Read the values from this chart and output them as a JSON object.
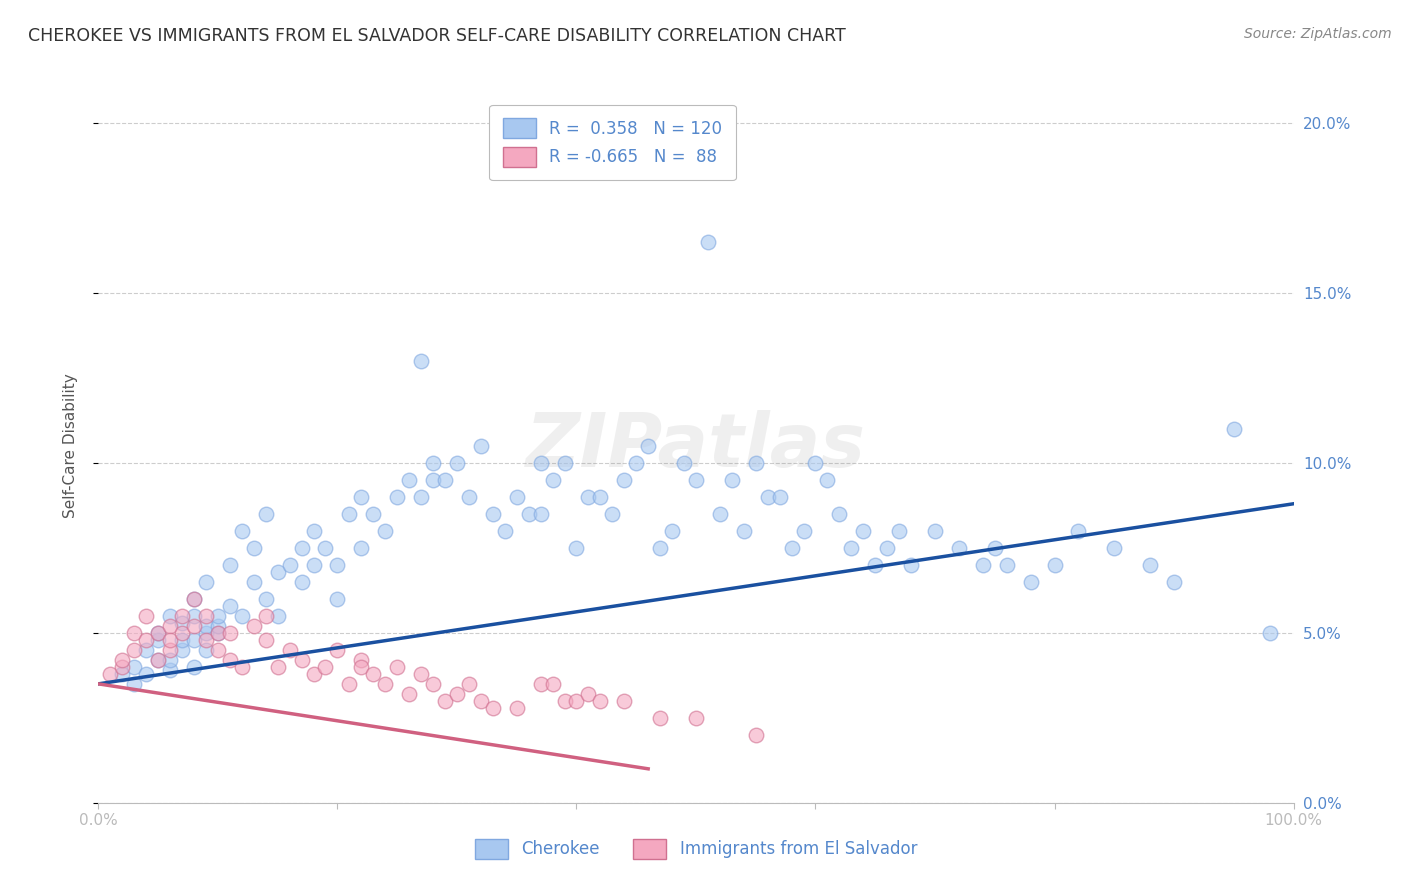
{
  "title": "CHEROKEE VS IMMIGRANTS FROM EL SALVADOR SELF-CARE DISABILITY CORRELATION CHART",
  "source": "Source: ZipAtlas.com",
  "ylabel": "Self-Care Disability",
  "bg_color": "#ffffff",
  "grid_color": "#c8c8c8",
  "watermark_text": "ZIPatlas",
  "blue_color": "#a8c8f0",
  "blue_edge": "#80a8e0",
  "blue_line_color": "#1a50a0",
  "pink_color": "#f4a8c0",
  "pink_edge": "#d07090",
  "pink_line_color": "#d06080",
  "tick_color": "#5588cc",
  "title_color": "#333333",
  "ylabel_color": "#555555",
  "xlim": [
    0.0,
    100.0
  ],
  "ylim": [
    0.0,
    21.0
  ],
  "xticks": [
    0.0,
    20.0,
    40.0,
    60.0,
    80.0,
    100.0
  ],
  "yticks": [
    0.0,
    5.0,
    10.0,
    15.0,
    20.0
  ],
  "xticklabels": [
    "0.0%",
    "",
    "",
    "",
    "",
    "100.0%"
  ],
  "yticklabels_right": [
    "0.0%",
    "5.0%",
    "10.0%",
    "15.0%",
    "20.0%"
  ],
  "blue_line_x0": 0,
  "blue_line_y0": 3.5,
  "blue_line_x1": 100,
  "blue_line_y1": 8.8,
  "pink_line_x0": 0,
  "pink_line_y0": 3.5,
  "pink_line_x1": 46,
  "pink_line_y1": 1.0,
  "legend1_r": "R =  0.358",
  "legend1_n": "N = 120",
  "legend2_r": "R = -0.665",
  "legend2_n": "N =  88",
  "cat1_label": "Cherokee",
  "cat2_label": "Immigrants from El Salvador",
  "blue_x": [
    2,
    3,
    3,
    4,
    4,
    5,
    5,
    5,
    6,
    6,
    6,
    7,
    7,
    7,
    8,
    8,
    8,
    8,
    9,
    9,
    9,
    9,
    10,
    10,
    10,
    11,
    11,
    12,
    12,
    13,
    13,
    14,
    14,
    15,
    15,
    16,
    17,
    17,
    18,
    18,
    19,
    20,
    20,
    21,
    22,
    22,
    23,
    24,
    25,
    26,
    27,
    27,
    28,
    28,
    29,
    30,
    31,
    32,
    33,
    34,
    35,
    36,
    37,
    37,
    38,
    39,
    40,
    41,
    42,
    43,
    44,
    45,
    46,
    47,
    48,
    49,
    50,
    51,
    52,
    53,
    54,
    55,
    56,
    57,
    58,
    59,
    60,
    61,
    62,
    63,
    64,
    65,
    66,
    67,
    68,
    70,
    72,
    74,
    75,
    76,
    78,
    80,
    82,
    85,
    88,
    90,
    95,
    98
  ],
  "blue_y": [
    3.8,
    3.5,
    4.0,
    3.8,
    4.5,
    4.2,
    4.8,
    5.0,
    3.9,
    5.5,
    4.2,
    4.5,
    4.8,
    5.3,
    4.0,
    4.8,
    5.5,
    6.0,
    4.5,
    5.0,
    5.2,
    6.5,
    5.0,
    5.2,
    5.5,
    5.8,
    7.0,
    5.5,
    8.0,
    6.5,
    7.5,
    6.0,
    8.5,
    5.5,
    6.8,
    7.0,
    6.5,
    7.5,
    8.0,
    7.0,
    7.5,
    6.0,
    7.0,
    8.5,
    7.5,
    9.0,
    8.5,
    8.0,
    9.0,
    9.5,
    9.0,
    13.0,
    9.5,
    10.0,
    9.5,
    10.0,
    9.0,
    10.5,
    8.5,
    8.0,
    9.0,
    8.5,
    8.5,
    10.0,
    9.5,
    10.0,
    7.5,
    9.0,
    9.0,
    8.5,
    9.5,
    10.0,
    10.5,
    7.5,
    8.0,
    10.0,
    9.5,
    16.5,
    8.5,
    9.5,
    8.0,
    10.0,
    9.0,
    9.0,
    7.5,
    8.0,
    10.0,
    9.5,
    8.5,
    7.5,
    8.0,
    7.0,
    7.5,
    8.0,
    7.0,
    8.0,
    7.5,
    7.0,
    7.5,
    7.0,
    6.5,
    7.0,
    8.0,
    7.5,
    7.0,
    6.5,
    11.0,
    5.0
  ],
  "pink_x": [
    1,
    2,
    2,
    3,
    3,
    4,
    4,
    5,
    5,
    6,
    6,
    6,
    7,
    7,
    8,
    8,
    9,
    9,
    10,
    10,
    11,
    11,
    12,
    13,
    14,
    14,
    15,
    16,
    17,
    18,
    19,
    20,
    21,
    22,
    22,
    23,
    24,
    25,
    26,
    27,
    28,
    29,
    30,
    31,
    32,
    33,
    35,
    37,
    38,
    39,
    40,
    41,
    42,
    44,
    47,
    50,
    55
  ],
  "pink_y": [
    3.8,
    4.0,
    4.2,
    4.5,
    5.0,
    4.8,
    5.5,
    4.2,
    5.0,
    4.5,
    5.2,
    4.8,
    5.0,
    5.5,
    5.2,
    6.0,
    4.8,
    5.5,
    4.5,
    5.0,
    4.2,
    5.0,
    4.0,
    5.2,
    4.8,
    5.5,
    4.0,
    4.5,
    4.2,
    3.8,
    4.0,
    4.5,
    3.5,
    4.2,
    4.0,
    3.8,
    3.5,
    4.0,
    3.2,
    3.8,
    3.5,
    3.0,
    3.2,
    3.5,
    3.0,
    2.8,
    2.8,
    3.5,
    3.5,
    3.0,
    3.0,
    3.2,
    3.0,
    3.0,
    2.5,
    2.5,
    2.0
  ]
}
